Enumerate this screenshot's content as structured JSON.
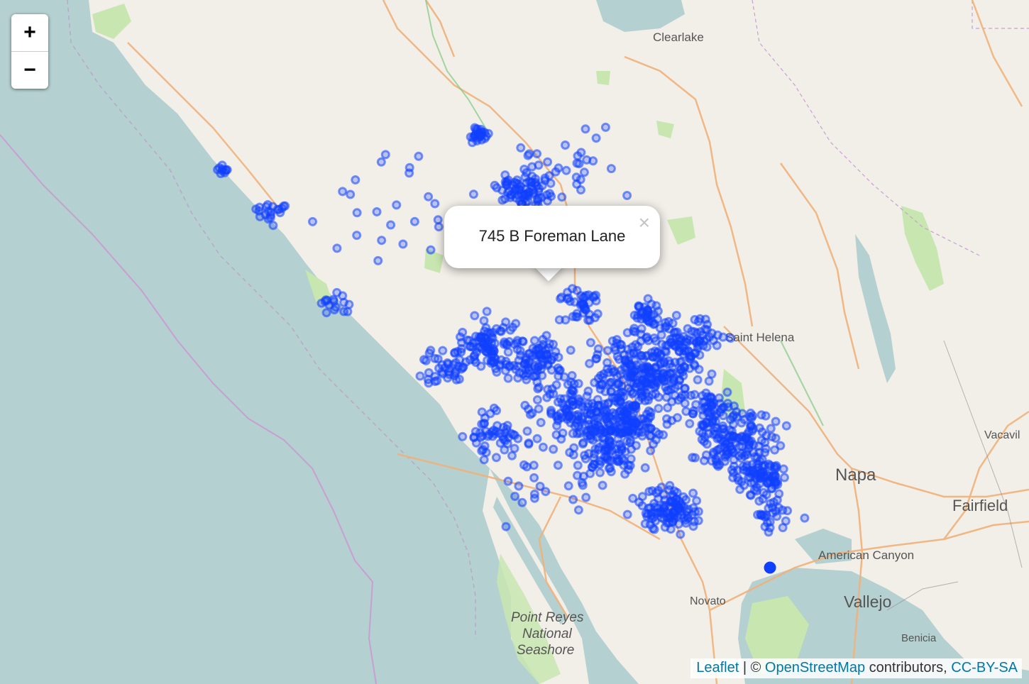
{
  "zoom_controls": {
    "zoom_in": "+",
    "zoom_out": "−"
  },
  "place_labels": {
    "clearlake": "Clearlake",
    "saint_helena": "Saint Helena",
    "napa": "Napa",
    "vacaville": "Vacavil",
    "fairfield": "Fairfield",
    "american_canyon": "American Canyon",
    "vallejo": "Vallejo",
    "novato": "Novato",
    "benicia": "Benicia",
    "point_reyes_1": "Point Reyes",
    "point_reyes_2": "National",
    "point_reyes_3": "Seashore"
  },
  "popup": {
    "text": "745 B Foreman Lane",
    "close_label": "×"
  },
  "attribution": {
    "leaflet": "Leaflet",
    "separator": " | © ",
    "osm": "OpenStreetMap",
    "contributors": " contributors, ",
    "license": "CC-BY-SA"
  },
  "colors": {
    "marker": "#1040ff",
    "water": "#b5d0d0",
    "land": "#f2efe9",
    "park": "#c8e6b0",
    "road": "#f7c78e",
    "boundary": "#c79fd3"
  }
}
